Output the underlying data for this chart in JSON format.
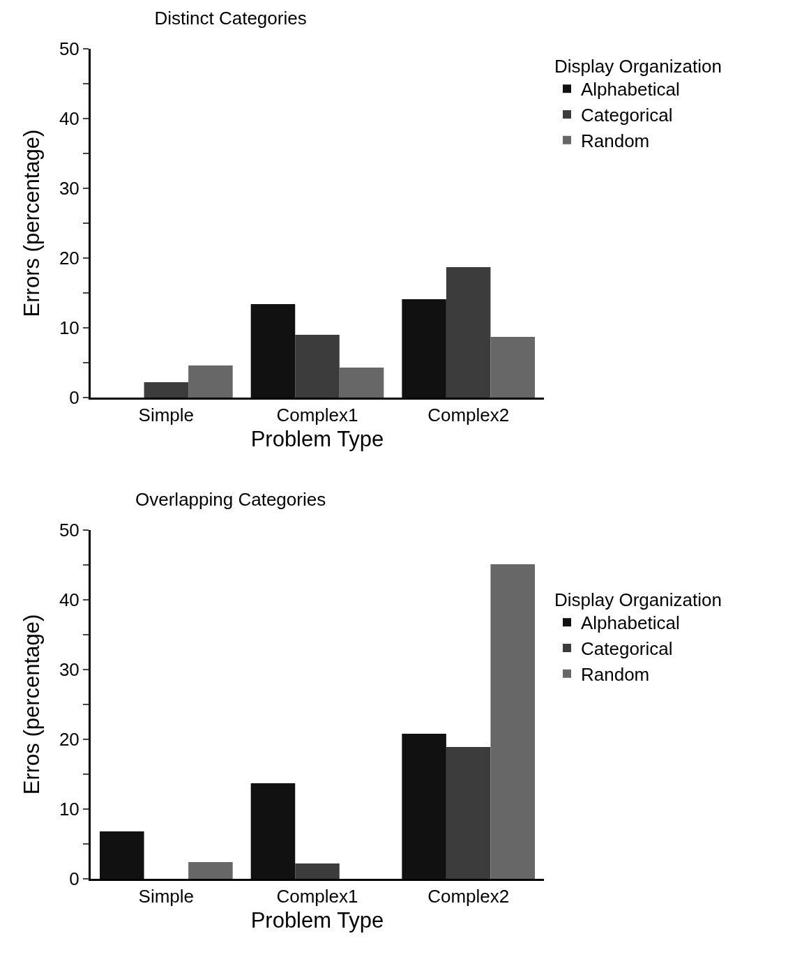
{
  "chart_data": [
    {
      "type": "bar",
      "title": "Distinct Categories",
      "xlabel": "Problem Type",
      "ylabel": "Errors (percentage)",
      "legend_title": "Display Organization",
      "legend": "top right",
      "categories": [
        "Simple",
        "Complex1",
        "Complex2"
      ],
      "series": [
        {
          "name": "Alphabetical",
          "color": "#111111",
          "values": [
            0,
            13.4,
            14.1
          ]
        },
        {
          "name": "Categorical",
          "color": "#3c3c3c",
          "values": [
            2.2,
            9.0,
            18.7
          ]
        },
        {
          "name": "Random",
          "color": "#676767",
          "values": [
            4.6,
            4.3,
            8.7
          ]
        }
      ],
      "ylim": [
        0,
        50
      ],
      "yticks": [
        0,
        {
          "value": 5,
          "label": null
        },
        10,
        {
          "value": 15,
          "label": null
        },
        20,
        {
          "value": 25,
          "label": null
        },
        30,
        {
          "value": 35,
          "label": null
        },
        40,
        {
          "value": 45,
          "label": null
        },
        50
      ],
      "grid": false
    },
    {
      "type": "bar",
      "title": "Overlapping Categories",
      "xlabel": "Problem Type",
      "ylabel": "Erros (percentage)",
      "legend_title": "Display Organization",
      "legend": "right",
      "categories": [
        "Simple",
        "Complex1",
        "Complex2"
      ],
      "series": [
        {
          "name": "Alphabetical",
          "color": "#111111",
          "values": [
            6.8,
            13.7,
            20.8
          ]
        },
        {
          "name": "Categorical",
          "color": "#3c3c3c",
          "values": [
            0,
            2.2,
            18.9
          ]
        },
        {
          "name": "Random",
          "color": "#676767",
          "values": [
            2.4,
            0,
            45.1
          ]
        }
      ],
      "ylim": [
        0,
        50
      ],
      "yticks": [
        0,
        {
          "value": 5,
          "label": null
        },
        10,
        {
          "value": 15,
          "label": null
        },
        20,
        {
          "value": 25,
          "label": null
        },
        30,
        {
          "value": 35,
          "label": null
        },
        40,
        {
          "value": 45,
          "label": null
        },
        50
      ],
      "grid": false
    }
  ]
}
